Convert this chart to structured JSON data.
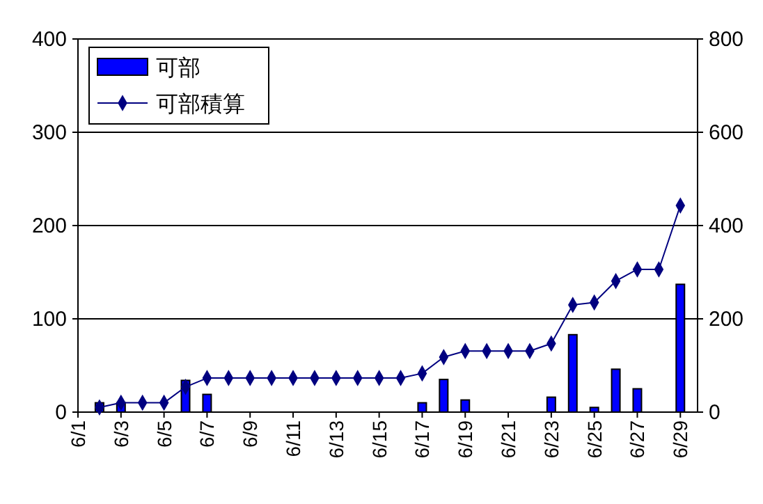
{
  "chart_data": {
    "type": "bar",
    "categories": [
      "6/1",
      null,
      "6/3",
      null,
      "6/5",
      null,
      "6/7",
      null,
      "6/9",
      null,
      "6/11",
      null,
      "6/13",
      null,
      "6/15",
      null,
      "6/17",
      null,
      "6/19",
      null,
      "6/21",
      null,
      "6/23",
      null,
      "6/25",
      null,
      "6/27",
      null,
      "6/29"
    ],
    "series": [
      {
        "name": "可部",
        "color": "#0000ff",
        "values": [
          null,
          10,
          10,
          0,
          0,
          34,
          19,
          0,
          0,
          0,
          0,
          0,
          0,
          0,
          0,
          0,
          10,
          35,
          13,
          0,
          0,
          0,
          16,
          83,
          5,
          46,
          25,
          0,
          137
        ]
      },
      {
        "name": "可部積算",
        "type": "line",
        "axis": "y2",
        "color": "#000080",
        "marker": "diamond",
        "values": [
          null,
          10,
          20,
          20,
          20,
          54,
          73,
          73,
          73,
          73,
          73,
          73,
          73,
          73,
          73,
          73,
          83,
          118,
          131,
          131,
          131,
          131,
          147,
          230,
          235,
          281,
          306,
          306,
          443
        ]
      }
    ],
    "ylim": [
      0,
      400
    ],
    "yticks": [
      0,
      100,
      200,
      300,
      400
    ],
    "y2lim": [
      0,
      800
    ],
    "y2ticks": [
      0,
      200,
      400,
      600,
      800
    ],
    "grid": "y",
    "legend": "top left"
  }
}
